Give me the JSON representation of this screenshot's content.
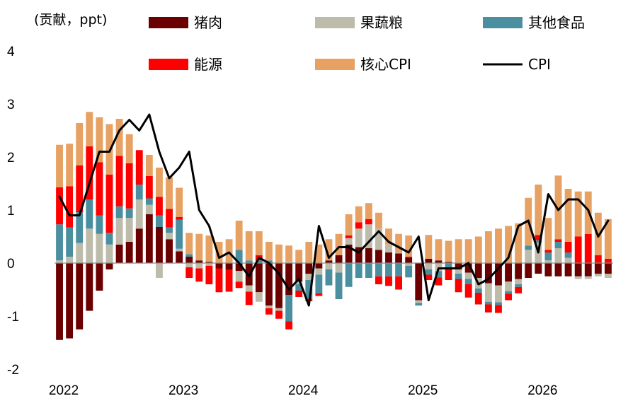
{
  "chart_data": {
    "type": "bar",
    "ylabel": "(贡献，ppt)",
    "ylim": [
      -2,
      4
    ],
    "yticks": [
      4,
      3,
      2,
      1,
      0,
      -1,
      -2
    ],
    "x_tick_labels": [
      "2022",
      "2023",
      "2024",
      "2025",
      "2026"
    ],
    "x_tick_index": [
      0,
      12,
      24,
      36,
      48
    ],
    "legend_placement": "top",
    "grid": false,
    "series": [
      {
        "name": "猪肉",
        "color": "#6B0000",
        "values": [
          -1.45,
          -1.42,
          -1.25,
          -0.9,
          -0.52,
          -0.12,
          0.35,
          0.4,
          0.65,
          0.92,
          0.68,
          0.45,
          0.22,
          0.12,
          0.05,
          0.02,
          -0.1,
          -0.12,
          -0.15,
          -0.42,
          -0.55,
          -0.8,
          -0.85,
          -0.6,
          -0.35,
          -0.2,
          -0.1,
          0.05,
          0.15,
          0.35,
          0.3,
          0.28,
          0.25,
          0.2,
          0.18,
          0.1,
          -0.7,
          0.08,
          0.05,
          0.02,
          -0.12,
          -0.18,
          -0.28,
          -0.38,
          -0.42,
          -0.35,
          -0.3,
          -0.28,
          -0.2,
          -0.25,
          -0.25,
          -0.25,
          -0.25,
          -0.25,
          -0.2,
          -0.2
        ]
      },
      {
        "name": "果蔬粮",
        "color": "#BDBBAA",
        "values": [
          0.05,
          0.12,
          0.38,
          0.65,
          0.55,
          0.35,
          0.5,
          0.45,
          0.55,
          0.18,
          -0.28,
          0.12,
          0.05,
          -0.08,
          -0.1,
          -0.05,
          0.0,
          0.0,
          -0.2,
          -0.12,
          -0.18,
          -0.05,
          -0.05,
          0.03,
          -0.05,
          -0.12,
          -0.12,
          -0.12,
          -0.18,
          0.12,
          0.35,
          0.45,
          0.4,
          0.15,
          0.02,
          -0.05,
          -0.05,
          -0.12,
          -0.15,
          0.0,
          -0.08,
          -0.12,
          -0.2,
          -0.35,
          -0.32,
          -0.18,
          -0.1,
          0.25,
          0.38,
          0.05,
          0.28,
          0.1,
          -0.05,
          -0.05,
          -0.05,
          -0.08
        ]
      },
      {
        "name": "其他食品",
        "color": "#4A8FA0",
        "values": [
          0.68,
          0.55,
          0.58,
          0.55,
          0.35,
          0.22,
          0.22,
          0.18,
          0.28,
          0.12,
          0.22,
          0.1,
          0.55,
          0.05,
          0.0,
          0.0,
          0.0,
          0.0,
          0.25,
          0.05,
          0.05,
          0.05,
          0.0,
          -0.5,
          -0.12,
          -0.35,
          -0.35,
          -0.3,
          -0.5,
          -0.45,
          -0.28,
          -0.28,
          -0.25,
          -0.25,
          -0.25,
          -0.22,
          -0.05,
          -0.1,
          -0.12,
          -0.12,
          -0.1,
          -0.1,
          -0.08,
          -0.05,
          -0.05,
          -0.05,
          -0.05,
          0.08,
          0.05,
          0.15,
          0.12,
          0.1,
          0.0,
          0.0,
          0.0,
          0.0
        ]
      },
      {
        "name": "能源",
        "color": "#FF0000",
        "values": [
          0.7,
          0.78,
          0.88,
          1.0,
          1.0,
          1.1,
          0.95,
          0.85,
          0.65,
          0.42,
          0.35,
          0.35,
          0.05,
          -0.2,
          -0.25,
          -0.35,
          -0.45,
          -0.42,
          -0.12,
          -0.25,
          0.1,
          -0.12,
          -0.15,
          -0.15,
          -0.12,
          -0.05,
          -0.05,
          0.0,
          0.0,
          0.05,
          0.12,
          0.1,
          -0.15,
          -0.18,
          -0.25,
          0.02,
          0.0,
          -0.1,
          -0.15,
          -0.2,
          -0.25,
          -0.25,
          -0.22,
          -0.15,
          -0.15,
          -0.12,
          -0.12,
          0.0,
          0.1,
          0.05,
          0.05,
          0.2,
          0.5,
          0.55,
          0.15,
          0.08
        ]
      },
      {
        "name": "核心CPI",
        "color": "#E6A163",
        "values": [
          0.8,
          0.8,
          0.8,
          0.65,
          0.85,
          0.95,
          0.7,
          0.55,
          0.0,
          0.4,
          0.55,
          0.6,
          0.55,
          0.4,
          0.5,
          0.5,
          0.4,
          0.45,
          0.55,
          0.55,
          0.45,
          0.35,
          0.35,
          0.3,
          0.25,
          0.4,
          0.35,
          0.4,
          0.4,
          0.4,
          0.3,
          0.3,
          0.3,
          0.3,
          0.35,
          0.4,
          0.0,
          0.45,
          0.4,
          0.4,
          0.45,
          0.45,
          0.5,
          0.6,
          0.65,
          0.7,
          0.75,
          0.9,
          0.95,
          0.6,
          1.2,
          1.0,
          0.85,
          0.8,
          0.8,
          0.75
        ]
      },
      {
        "name": "CPI",
        "color": "#000000",
        "kind": "line",
        "values": [
          1.25,
          0.9,
          0.9,
          1.5,
          2.1,
          2.1,
          2.5,
          2.7,
          2.5,
          2.8,
          2.1,
          1.6,
          1.8,
          2.1,
          1.0,
          0.7,
          0.1,
          0.2,
          0.0,
          -0.25,
          0.1,
          0.0,
          -0.2,
          -0.5,
          -0.3,
          -0.8,
          0.7,
          0.1,
          0.3,
          0.3,
          0.2,
          0.4,
          0.6,
          0.4,
          0.3,
          0.2,
          0.5,
          -0.7,
          -0.1,
          -0.1,
          -0.1,
          0.0,
          -0.4,
          -0.3,
          -0.1,
          0.1,
          0.7,
          0.8,
          0.2,
          1.3,
          1.0,
          1.2,
          1.2,
          1.0,
          0.5,
          0.8
        ]
      }
    ]
  }
}
